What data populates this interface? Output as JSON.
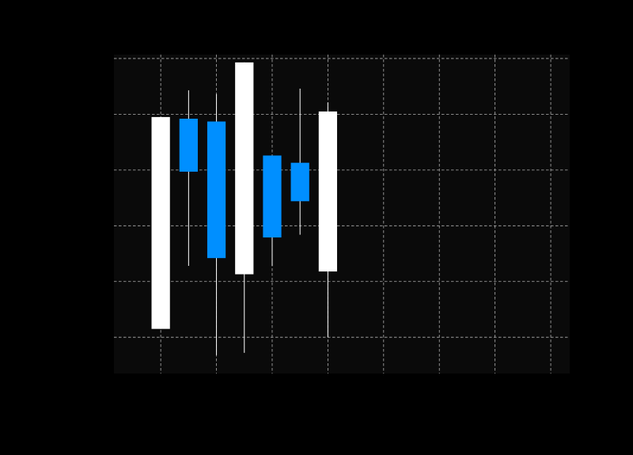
{
  "colors": {
    "figure_bg": "#000000",
    "plot_bg": "#0a0a0a",
    "grid": "#b0b0b0",
    "up": "#ffffff",
    "down": "#008fff",
    "wick": "#ffffff"
  },
  "chart_data": {
    "type": "candlestick",
    "title": "",
    "xlabel": "",
    "ylabel": "",
    "grid": true,
    "xlim": [
      0.16,
      8.34
    ],
    "ylim": [
      -0.65,
      5.07
    ],
    "xticks": [
      1,
      2,
      3,
      4,
      5,
      6,
      7,
      8
    ],
    "yticks": [
      0,
      1,
      2,
      3,
      4,
      5
    ],
    "candles": [
      {
        "x": 1.0,
        "open": 0.15,
        "close": 3.95,
        "high": 3.95,
        "low": 0.15,
        "direction": "up"
      },
      {
        "x": 1.5,
        "open": 3.92,
        "close": 2.97,
        "high": 4.43,
        "low": 1.28,
        "direction": "down"
      },
      {
        "x": 2.0,
        "open": 3.87,
        "close": 1.42,
        "high": 4.36,
        "low": -0.32,
        "direction": "down"
      },
      {
        "x": 2.5,
        "open": 1.13,
        "close": 4.93,
        "high": 4.93,
        "low": -0.28,
        "direction": "up"
      },
      {
        "x": 3.0,
        "open": 3.26,
        "close": 1.79,
        "high": 3.26,
        "low": 1.28,
        "direction": "down"
      },
      {
        "x": 3.5,
        "open": 3.13,
        "close": 2.44,
        "high": 4.46,
        "low": 1.84,
        "direction": "down"
      },
      {
        "x": 4.0,
        "open": 1.18,
        "close": 4.05,
        "high": 4.21,
        "low": 0.0,
        "direction": "up"
      }
    ]
  }
}
